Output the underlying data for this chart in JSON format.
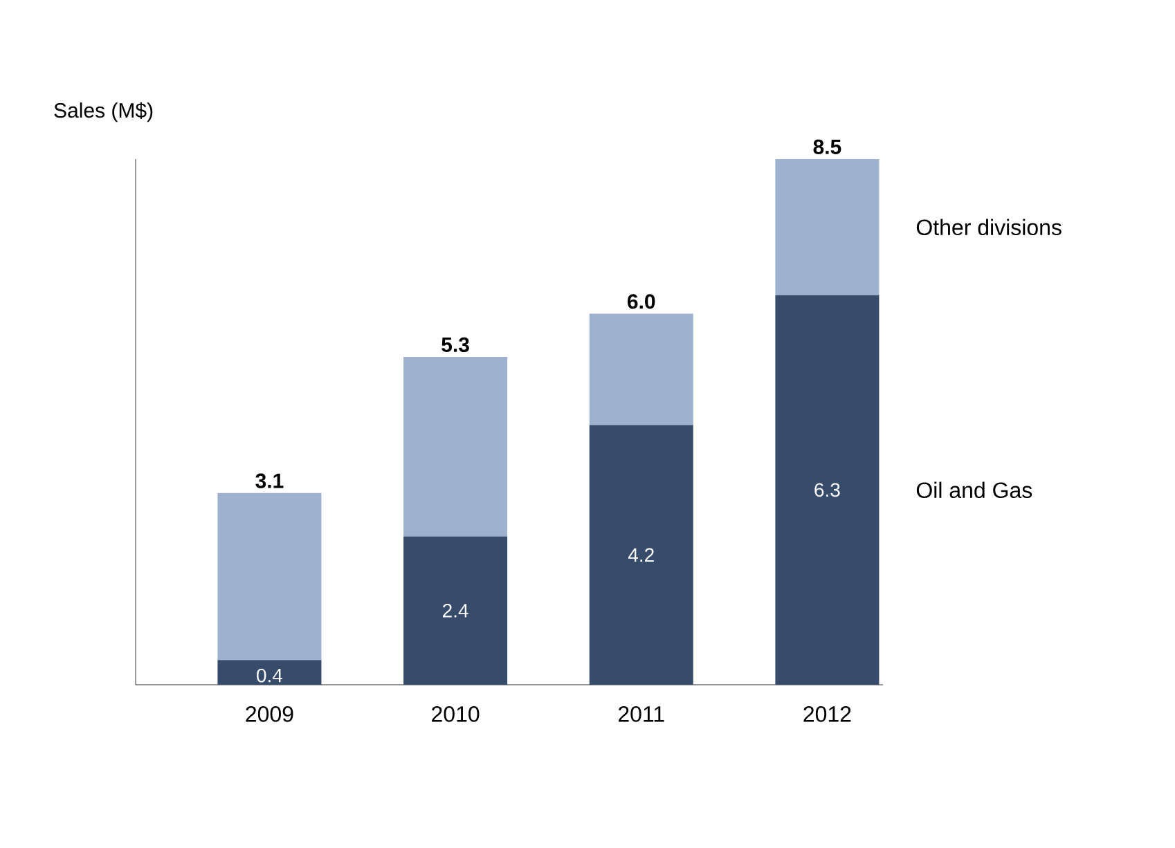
{
  "chart_data": {
    "type": "bar",
    "stacked": true,
    "ylabel": "Sales (M$)",
    "categories": [
      "2009",
      "2010",
      "2011",
      "2012"
    ],
    "series": [
      {
        "name": "Oil and Gas",
        "color": "#374b6b",
        "values": [
          0.4,
          2.4,
          4.2,
          6.3
        ],
        "value_labels": [
          "0.4",
          "2.4",
          "4.2",
          "6.3"
        ]
      },
      {
        "name": "Other divisions",
        "color": "#9eb1cf",
        "values": [
          2.7,
          2.9,
          1.8,
          2.2
        ]
      }
    ],
    "totals": [
      "3.1",
      "5.3",
      "6.0",
      "8.5"
    ]
  }
}
